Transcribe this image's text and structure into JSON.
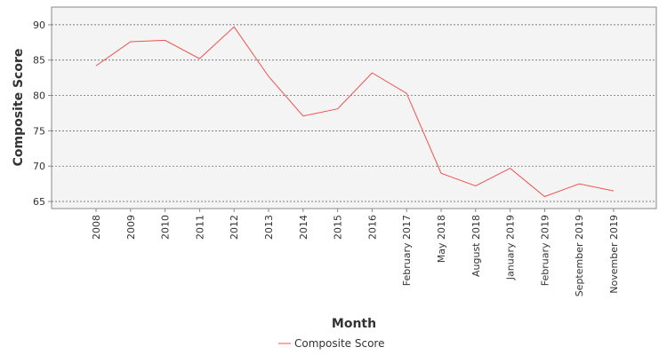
{
  "colors": {
    "series": "#f0524f",
    "plot_background": "#f4f4f4",
    "grid": "#555555",
    "axis": "#888888"
  },
  "chart_data": {
    "type": "line",
    "xlabel": "Month",
    "ylabel": "Composite Score",
    "ylim": [
      64,
      92.5
    ],
    "yticks": [
      65,
      70,
      75,
      80,
      85,
      90
    ],
    "grid": true,
    "legend": "bottom-center",
    "categories": [
      "2008",
      "2009",
      "2010",
      "2011",
      "2012",
      "2013",
      "2014",
      "2015",
      "2016",
      "February 2017",
      "May 2018",
      "August 2018",
      "January 2019",
      "February 2019",
      "September 2019",
      "November 2019"
    ],
    "series": [
      {
        "name": "Composite Score",
        "values": [
          84.2,
          87.6,
          87.8,
          85.2,
          89.7,
          82.7,
          77.1,
          78.1,
          83.2,
          80.3,
          69.0,
          67.2,
          69.7,
          65.7,
          67.5,
          66.5
        ]
      }
    ]
  }
}
